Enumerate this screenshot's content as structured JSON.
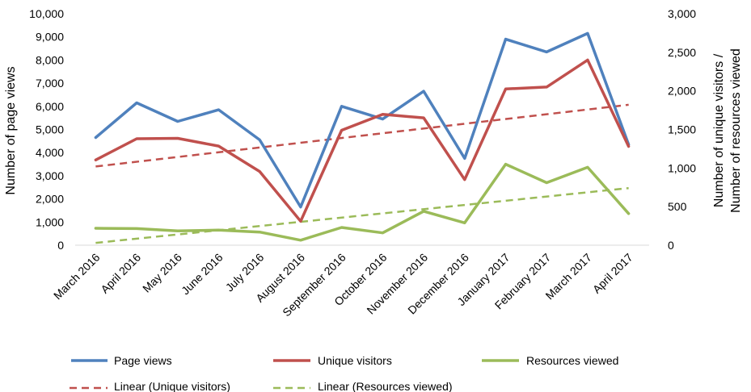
{
  "chart_data": {
    "type": "line",
    "categories": [
      "March 2016",
      "April 2016",
      "May 2016",
      "June 2016",
      "July 2016",
      "August 2016",
      "September 2016",
      "October 2016",
      "November 2016",
      "December 2016",
      "January 2017",
      "February 2017",
      "March 2017",
      "April 2017"
    ],
    "series": [
      {
        "name": "Page views",
        "axis": "left",
        "color": "#4f81bd",
        "values": [
          4650,
          6150,
          5350,
          5850,
          4550,
          1650,
          6000,
          5450,
          6650,
          3750,
          8900,
          8350,
          9150,
          4350
        ]
      },
      {
        "name": "Unique visitors",
        "axis": "right",
        "color": "#c0504d",
        "values": [
          1105,
          1380,
          1385,
          1285,
          955,
          310,
          1490,
          1695,
          1650,
          850,
          2025,
          2050,
          2400,
          1280
        ]
      },
      {
        "name": "Resources viewed",
        "axis": "right",
        "color": "#9bbb59",
        "values": [
          220,
          215,
          185,
          195,
          170,
          65,
          230,
          160,
          440,
          290,
          1050,
          810,
          1010,
          410
        ]
      }
    ],
    "trendlines": [
      {
        "name": "Linear (Unique visitors)",
        "axis": "right",
        "color": "#c0504d",
        "start": 1020,
        "end": 1820
      },
      {
        "name": "Linear (Resources viewed)",
        "axis": "right",
        "color": "#9bbb59",
        "start": 30,
        "end": 740
      }
    ],
    "ylabel": "Number of page views",
    "ylabel_right_lines": [
      "Number of unique visitors /",
      "Number of resources viewed"
    ],
    "ylim": [
      0,
      10000
    ],
    "ylim_right": [
      0,
      3000
    ],
    "yticks": [
      "0",
      "1,000",
      "2,000",
      "3,000",
      "4,000",
      "5,000",
      "6,000",
      "7,000",
      "8,000",
      "9,000",
      "10,000"
    ],
    "yticks_right": [
      "0",
      "500",
      "1,000",
      "1,500",
      "2,000",
      "2,500",
      "3,000"
    ],
    "grid": false,
    "legend_position": "bottom"
  }
}
